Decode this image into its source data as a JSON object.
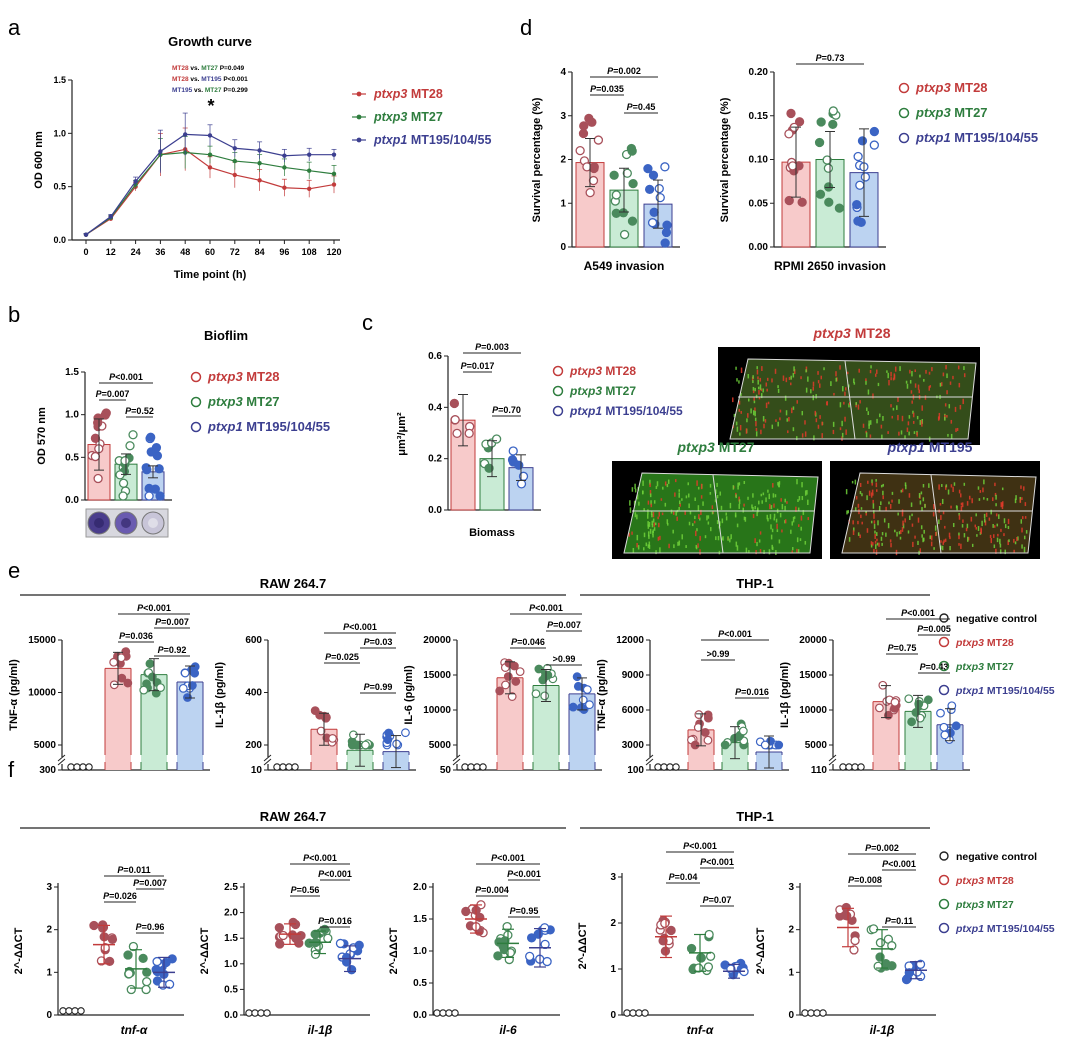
{
  "colors": {
    "mt28": "#c23b3b",
    "mt27": "#2e7d3e",
    "mt195": "#3c3f90",
    "mt28_fill": "#f7caca",
    "mt27_fill": "#c9ebd5",
    "mt195_fill": "#bcd3f1",
    "mt28_dot": "#a8505a",
    "mt27_dot": "#4a8a5d",
    "mt195_dot": "#3b64c4"
  },
  "legend": {
    "neg": "negative control",
    "mt28_gene": "ptxp3",
    "mt28_strain": "MT28",
    "mt27_gene": "ptxp3",
    "mt27_strain": "MT27",
    "mt195_gene": "ptxp1",
    "mt195_strain": "MT195/104/55",
    "mt195_short": "MT195"
  },
  "panel_labels": {
    "a": "a",
    "b": "b",
    "c": "c",
    "d": "d",
    "e": "e",
    "f": "f"
  },
  "groups": {
    "raw": "RAW 264.7",
    "thp": "THP-1"
  },
  "chart_data": [
    {
      "id": "a",
      "type": "line",
      "title": "Growth curve",
      "xlabel": "Time point (h)",
      "ylabel": "OD 600 nm",
      "x": [
        0,
        12,
        24,
        36,
        48,
        60,
        72,
        84,
        96,
        108,
        120
      ],
      "ylim": [
        0,
        1.5
      ],
      "yticks": [
        "0.0",
        "0.5",
        "1.0",
        "1.5"
      ],
      "series": [
        {
          "name": "ptxp3 MT28",
          "values": [
            0.05,
            0.2,
            0.5,
            0.8,
            0.85,
            0.68,
            0.61,
            0.56,
            0.49,
            0.48,
            0.52
          ],
          "err": [
            0.01,
            0.02,
            0.04,
            0.2,
            0.2,
            0.1,
            0.12,
            0.1,
            0.08,
            0.08,
            0.08
          ]
        },
        {
          "name": "ptxp3 MT27",
          "values": [
            0.05,
            0.21,
            0.52,
            0.8,
            0.82,
            0.8,
            0.74,
            0.72,
            0.68,
            0.65,
            0.62
          ],
          "err": [
            0.01,
            0.02,
            0.04,
            0.15,
            0.15,
            0.08,
            0.08,
            0.08,
            0.08,
            0.08,
            0.08
          ]
        },
        {
          "name": "ptxp1 MT195/104/55",
          "values": [
            0.05,
            0.22,
            0.55,
            0.83,
            0.99,
            0.98,
            0.86,
            0.84,
            0.79,
            0.8,
            0.8
          ],
          "err": [
            0.01,
            0.02,
            0.04,
            0.2,
            0.2,
            0.1,
            0.08,
            0.08,
            0.06,
            0.06,
            0.05
          ]
        }
      ],
      "stats": [
        "MT28 vs. MT27 P=0.049",
        "MT28 vs. MT195 P<0.001",
        "MT195 vs. MT27 P=0.299"
      ],
      "star": "*"
    },
    {
      "id": "b",
      "type": "bar",
      "title": "Bioflim",
      "ylabel": "OD 570 nm",
      "ylim": [
        0,
        1.5
      ],
      "yticks": [
        "0.0",
        "0.5",
        "1.0",
        "1.5"
      ],
      "series": [
        {
          "name": "ptxp3 MT28",
          "value": 0.65,
          "err": 0.3
        },
        {
          "name": "ptxp3 MT27",
          "value": 0.42,
          "err": 0.12
        },
        {
          "name": "ptxp1 MT195/104/55",
          "value": 0.33,
          "err": 0.07
        }
      ],
      "pvals": [
        "P<0.001",
        "P=0.007",
        "P=0.52"
      ]
    },
    {
      "id": "c",
      "type": "bar",
      "ylabel": "μm³/μm²",
      "xlabel": "Biomass",
      "ylim": [
        0,
        0.6
      ],
      "yticks": [
        "0.0",
        "0.2",
        "0.4",
        "0.6"
      ],
      "series": [
        {
          "name": "ptxp3 MT28",
          "value": 0.35,
          "err": 0.1
        },
        {
          "name": "ptxp3 MT27",
          "value": 0.2,
          "err": 0.07
        },
        {
          "name": "ptxp1 MT195",
          "value": 0.165,
          "err": 0.05
        }
      ],
      "pvals": [
        "P=0.003",
        "P=0.017",
        "P=0.70"
      ]
    },
    {
      "id": "d1",
      "type": "bar",
      "ylabel": "Survival percentage (%)",
      "xlabel": "A549 invasion",
      "ylim": [
        0,
        4
      ],
      "yticks": [
        "0",
        "1",
        "2",
        "3",
        "4"
      ],
      "series": [
        {
          "name": "ptxp3 MT28",
          "value": 1.93,
          "err": 0.55
        },
        {
          "name": "ptxp3 MT27",
          "value": 1.3,
          "err": 0.5
        },
        {
          "name": "ptxp1 MT195/104/55",
          "value": 0.98,
          "err": 0.55
        }
      ],
      "pvals": [
        "P=0.002",
        "P=0.035",
        "P=0.45"
      ]
    },
    {
      "id": "d2",
      "type": "bar",
      "ylabel": "Survival percentage (%)",
      "xlabel": "RPMI 2650 invasion",
      "ylim": [
        0,
        0.2
      ],
      "yticks": [
        "0.00",
        "0.05",
        "0.10",
        "0.15",
        "0.20"
      ],
      "series": [
        {
          "name": "ptxp3 MT28",
          "value": 0.097,
          "err": 0.04
        },
        {
          "name": "ptxp3 MT27",
          "value": 0.1,
          "err": 0.032
        },
        {
          "name": "ptxp1 MT195/104/55",
          "value": 0.085,
          "err": 0.05
        }
      ],
      "pvals": [
        "P=0.73"
      ]
    },
    {
      "id": "e1",
      "type": "bar",
      "ylabel": "TNF-α (pg/ml)",
      "yticks": [
        "300",
        "5000",
        "10000",
        "15000"
      ],
      "series": [
        {
          "name": "negative control",
          "value": 300
        },
        {
          "name": "ptxp3 MT28",
          "value": 12300
        },
        {
          "name": "ptxp3 MT27",
          "value": 11700
        },
        {
          "name": "ptxp1 MT195/104/55",
          "value": 11000
        }
      ],
      "pvals": [
        "P<0.001",
        "P=0.007",
        "P=0.036",
        "P=0.92"
      ]
    },
    {
      "id": "e2",
      "type": "bar",
      "ylabel": "IL-1β (pg/ml)",
      "yticks": [
        "10",
        "200",
        "400",
        "600"
      ],
      "series": [
        {
          "name": "negative control",
          "value": 10
        },
        {
          "name": "ptxp3 MT28",
          "value": 260
        },
        {
          "name": "ptxp3 MT27",
          "value": 180
        },
        {
          "name": "ptxp1 MT195/104/55",
          "value": 175
        }
      ],
      "pvals": [
        "P<0.001",
        "P=0.03",
        "P=0.025",
        "P=0.99"
      ]
    },
    {
      "id": "e3",
      "type": "bar",
      "ylabel": "IL-6 (pg/ml)",
      "yticks": [
        "50",
        "5000",
        "10000",
        "15000",
        "20000"
      ],
      "series": [
        {
          "name": "negative control",
          "value": 50
        },
        {
          "name": "ptxp3 MT28",
          "value": 14600
        },
        {
          "name": "ptxp3 MT27",
          "value": 13500
        },
        {
          "name": "ptxp1 MT195/104/55",
          "value": 12300
        }
      ],
      "pvals": [
        "P<0.001",
        "P=0.007",
        "P=0.046",
        ">0.99"
      ]
    },
    {
      "id": "e4",
      "type": "bar",
      "ylabel": "TNF-α (pg/ml)",
      "yticks": [
        "100",
        "3000",
        "6000",
        "9000",
        "12000"
      ],
      "series": [
        {
          "name": "negative control",
          "value": 100
        },
        {
          "name": "ptxp3 MT28",
          "value": 4300
        },
        {
          "name": "ptxp3 MT27",
          "value": 3200
        },
        {
          "name": "ptxp1 MT195/104/55",
          "value": 2400
        }
      ],
      "pvals": [
        "P<0.001",
        ">0.99",
        "P=0.016"
      ]
    },
    {
      "id": "e5",
      "type": "bar",
      "ylabel": "IL-1β (pg/ml)",
      "yticks": [
        "110",
        "5000",
        "10000",
        "15000",
        "20000"
      ],
      "series": [
        {
          "name": "negative control",
          "value": 110
        },
        {
          "name": "ptxp3 MT28",
          "value": 11200
        },
        {
          "name": "ptxp3 MT27",
          "value": 9800
        },
        {
          "name": "ptxp1 MT195/104/55",
          "value": 7900
        }
      ],
      "pvals": [
        "P<0.001",
        "P=0.005",
        "P=0.75",
        "P=0.43"
      ]
    },
    {
      "id": "f1",
      "type": "scatter",
      "ylabel": "2^-ΔΔCT",
      "xlabel": "tnf-α",
      "ylim": [
        0,
        3
      ],
      "yticks": [
        "0",
        "1",
        "2",
        "3"
      ],
      "series": [
        {
          "name": "negative control",
          "value": 0.05
        },
        {
          "name": "ptxp3 MT28",
          "value": 1.65,
          "err": 0.45
        },
        {
          "name": "ptxp3 MT27",
          "value": 1.08,
          "err": 0.45
        },
        {
          "name": "ptxp1 MT195/104/55",
          "value": 1.0,
          "err": 0.35
        }
      ],
      "pvals": [
        "P=0.011",
        "P=0.007",
        "P=0.026",
        "P=0.96"
      ]
    },
    {
      "id": "f2",
      "type": "scatter",
      "ylabel": "2^-ΔΔCT",
      "xlabel": "il-1β",
      "ylim": [
        0,
        2.5
      ],
      "yticks": [
        "0.0",
        "0.5",
        "1.0",
        "1.5",
        "2.0",
        "2.5"
      ],
      "series": [
        {
          "name": "negative control",
          "value": 0.0
        },
        {
          "name": "ptxp3 MT28",
          "value": 1.58,
          "err": 0.2
        },
        {
          "name": "ptxp3 MT27",
          "value": 1.42,
          "err": 0.22
        },
        {
          "name": "ptxp1 MT195/104/55",
          "value": 1.1,
          "err": 0.25
        }
      ],
      "pvals": [
        "P<0.001",
        "P<0.001",
        "P=0.56",
        "P=0.016"
      ]
    },
    {
      "id": "f3",
      "type": "scatter",
      "ylabel": "2^-ΔΔCT",
      "xlabel": "il-6",
      "ylim": [
        0,
        2
      ],
      "yticks": [
        "0.0",
        "0.5",
        "1.0",
        "1.5",
        "2.0"
      ],
      "series": [
        {
          "name": "negative control",
          "value": 0.0
        },
        {
          "name": "ptxp3 MT28",
          "value": 1.5,
          "err": 0.22
        },
        {
          "name": "ptxp3 MT27",
          "value": 1.12,
          "err": 0.22
        },
        {
          "name": "ptxp1 MT195/104/55",
          "value": 1.05,
          "err": 0.3
        }
      ],
      "pvals": [
        "P<0.001",
        "P<0.001",
        "P=0.004",
        "P=0.95"
      ]
    },
    {
      "id": "f4",
      "type": "scatter",
      "ylabel": "2^-ΔΔCT",
      "xlabel": "tnf-α",
      "ylim": [
        0,
        3
      ],
      "yticks": [
        "0",
        "1",
        "2",
        "3"
      ],
      "series": [
        {
          "name": "negative control",
          "value": 0.0
        },
        {
          "name": "ptxp3 MT28",
          "value": 1.7,
          "err": 0.45
        },
        {
          "name": "ptxp3 MT27",
          "value": 1.35,
          "err": 0.4
        },
        {
          "name": "ptxp1 MT195/104/55",
          "value": 0.95,
          "err": 0.15
        }
      ],
      "pvals": [
        "P<0.001",
        "P<0.001",
        "P=0.04",
        "P=0.07"
      ]
    },
    {
      "id": "f5",
      "type": "scatter",
      "ylabel": "2^-ΔΔCT",
      "xlabel": "il-1β",
      "ylim": [
        0,
        3
      ],
      "yticks": [
        "0",
        "1",
        "2",
        "3"
      ],
      "series": [
        {
          "name": "negative control",
          "value": 0.0
        },
        {
          "name": "ptxp3 MT28",
          "value": 2.05,
          "err": 0.45
        },
        {
          "name": "ptxp3 MT27",
          "value": 1.55,
          "err": 0.45
        },
        {
          "name": "ptxp1 MT195/104/55",
          "value": 1.05,
          "err": 0.2
        }
      ],
      "pvals": [
        "P=0.002",
        "P<0.001",
        "P=0.008",
        "P=0.11"
      ]
    }
  ]
}
